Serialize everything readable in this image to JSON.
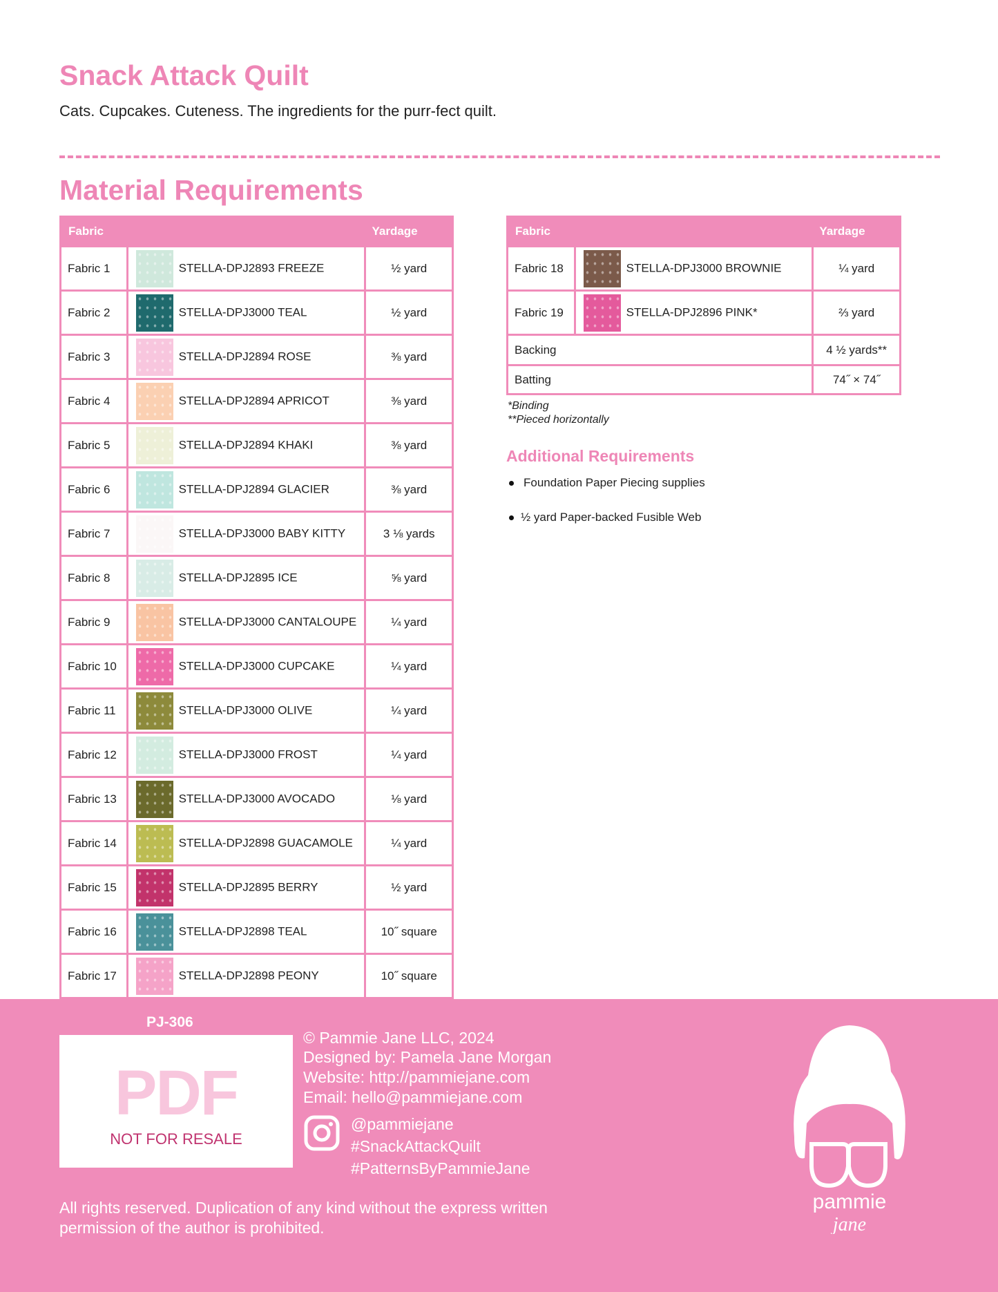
{
  "header": {
    "title": "Snack Attack Quilt",
    "subtitle": "Cats. Cupcakes. Cuteness. The ingredients for the purr-fect quilt."
  },
  "section_title": "Material Requirements",
  "table_headers": {
    "fabric": "Fabric",
    "yardage": "Yardage"
  },
  "fabrics_left": [
    {
      "label": "Fabric 1",
      "name": "STELLA-DPJ2893 FREEZE",
      "yardage": "½ yard",
      "swatch": "#cfe8dc"
    },
    {
      "label": "Fabric 2",
      "name": "STELLA-DPJ3000 TEAL",
      "yardage": "½ yard",
      "swatch": "#1f6a6d"
    },
    {
      "label": "Fabric 3",
      "name": "STELLA-DPJ2894 ROSE",
      "yardage": "⅜ yard",
      "swatch": "#f8c6de"
    },
    {
      "label": "Fabric 4",
      "name": "STELLA-DPJ2894 APRICOT",
      "yardage": "⅜ yard",
      "swatch": "#fbd0b2"
    },
    {
      "label": "Fabric 5",
      "name": "STELLA-DPJ2894 KHAKI",
      "yardage": "⅜ yard",
      "swatch": "#eef0d8"
    },
    {
      "label": "Fabric 6",
      "name": "STELLA-DPJ2894 GLACIER",
      "yardage": "⅜ yard",
      "swatch": "#bfe6df"
    },
    {
      "label": "Fabric 7",
      "name": "STELLA-DPJ3000 BABY KITTY",
      "yardage": "3 ⅛ yards",
      "swatch": "#fbf7f7"
    },
    {
      "label": "Fabric 8",
      "name": "STELLA-DPJ2895 ICE",
      "yardage": "⅝ yard",
      "swatch": "#d8ece6"
    },
    {
      "label": "Fabric 9",
      "name": "STELLA-DPJ3000 CANTALOUPE",
      "yardage": "¼ yard",
      "swatch": "#f9c4a3"
    },
    {
      "label": "Fabric 10",
      "name": "STELLA-DPJ3000 CUPCAKE",
      "yardage": "¼ yard",
      "swatch": "#ee6aa8"
    },
    {
      "label": "Fabric 11",
      "name": "STELLA-DPJ3000 OLIVE",
      "yardage": "¼ yard",
      "swatch": "#8d8a3b"
    },
    {
      "label": "Fabric 12",
      "name": "STELLA-DPJ3000 FROST",
      "yardage": "¼ yard",
      "swatch": "#d3ece0"
    },
    {
      "label": "Fabric 13",
      "name": "STELLA-DPJ3000 AVOCADO",
      "yardage": "⅛ yard",
      "swatch": "#6b6a2c"
    },
    {
      "label": "Fabric 14",
      "name": "STELLA-DPJ2898 GUACAMOLE",
      "yardage": "¼ yard",
      "swatch": "#bcbc52"
    },
    {
      "label": "Fabric 15",
      "name": "STELLA-DPJ2895 BERRY",
      "yardage": "½ yard",
      "swatch": "#c2336b"
    },
    {
      "label": "Fabric 16",
      "name": "STELLA-DPJ2898 TEAL",
      "yardage": "10˝ square",
      "swatch": "#4a919a"
    },
    {
      "label": "Fabric 17",
      "name": "STELLA-DPJ2898 PEONY",
      "yardage": "10˝ square",
      "swatch": "#f5a3c8"
    }
  ],
  "fabrics_right": [
    {
      "label": "Fabric 18",
      "name": "STELLA-DPJ3000 BROWNIE",
      "yardage": "¼ yard",
      "swatch": "#7b5a4a"
    },
    {
      "label": "Fabric 19",
      "name": "STELLA-DPJ2896 PINK*",
      "yardage": "⅔ yard",
      "swatch": "#e45a9c"
    }
  ],
  "extras": [
    {
      "label": "Backing",
      "yardage": "4 ½ yards**"
    },
    {
      "label": "Batting",
      "yardage": "74˝ × 74˝"
    }
  ],
  "notes": [
    "*Binding",
    "**Pieced horizontally"
  ],
  "additional": {
    "title": "Additional Requirements",
    "items": [
      "Foundation Paper Piecing supplies",
      "½ yard Paper-backed Fusible Web"
    ]
  },
  "footer": {
    "code": "PJ-306",
    "pdf": "PDF",
    "not_for_resale": "NOT FOR RESALE",
    "info": [
      "© Pammie Jane LLC, 2024",
      "Designed by: Pamela Jane Morgan",
      "Website: http://pammiejane.com",
      "Email: hello@pammiejane.com"
    ],
    "social": [
      "@pammiejane",
      "#SnackAttackQuilt",
      "#PatternsByPammieJane"
    ],
    "rights": "All rights reserved. Duplication of any kind without the express written permission of the author is prohibited.",
    "logo_text": [
      "pammie",
      "jane"
    ],
    "bg": "#f08cba"
  }
}
